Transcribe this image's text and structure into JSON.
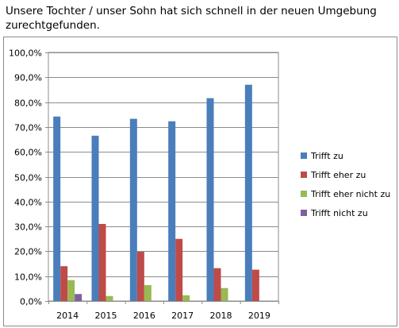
{
  "chart_data": {
    "type": "bar",
    "title_lines": [
      "Unsere Tochter / unser Sohn hat sich schnell in der neuen Umgebung",
      "zurechtgefunden."
    ],
    "categories": [
      "2014",
      "2015",
      "2016",
      "2017",
      "2018",
      "2019"
    ],
    "series": [
      {
        "name": "Trifft zu",
        "color": "#4a7ebb",
        "values": [
          74.2,
          66.5,
          73.3,
          72.3,
          81.6,
          87.0
        ]
      },
      {
        "name": "Trifft eher zu",
        "color": "#be4b48",
        "values": [
          14.0,
          31.0,
          19.8,
          25.0,
          13.2,
          12.6
        ]
      },
      {
        "name": "Trifft eher nicht zu",
        "color": "#98b954",
        "values": [
          8.4,
          2.0,
          6.4,
          2.3,
          5.2,
          0.0
        ]
      },
      {
        "name": "Trifft nicht zu",
        "color": "#7d60a0",
        "values": [
          2.8,
          0.0,
          0.0,
          0.0,
          0.0,
          0.0
        ]
      }
    ],
    "ylim": [
      0,
      100
    ],
    "yticks": [
      "0,0%",
      "10,0%",
      "20,0%",
      "30,0%",
      "40,0%",
      "50,0%",
      "60,0%",
      "70,0%",
      "80,0%",
      "90,0%",
      "100,0%"
    ],
    "grid": true,
    "legend_position": "right"
  }
}
